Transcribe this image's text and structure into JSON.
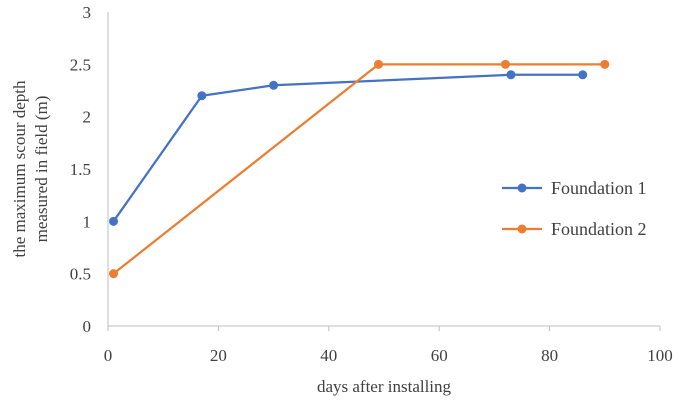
{
  "chart_data": {
    "type": "line",
    "title": "",
    "xlabel": "days after installing",
    "ylabel_lines": [
      "the maximum scour depth",
      "measured in field (m)"
    ],
    "xlim": [
      0,
      100
    ],
    "ylim": [
      0,
      3
    ],
    "xticks": [
      0,
      20,
      40,
      60,
      80,
      100
    ],
    "yticks": [
      0,
      0.5,
      1,
      1.5,
      2,
      2.5,
      3
    ],
    "grid": false,
    "legend_position": "right",
    "series": [
      {
        "name": "Foundation 1",
        "color": "#4472C4",
        "x": [
          1,
          17,
          30,
          73,
          86
        ],
        "y": [
          1.0,
          2.2,
          2.3,
          2.4,
          2.4
        ]
      },
      {
        "name": "Foundation 2",
        "color": "#ED7D31",
        "x": [
          1,
          49,
          72,
          90
        ],
        "y": [
          0.5,
          2.5,
          2.5,
          2.5
        ]
      }
    ]
  }
}
